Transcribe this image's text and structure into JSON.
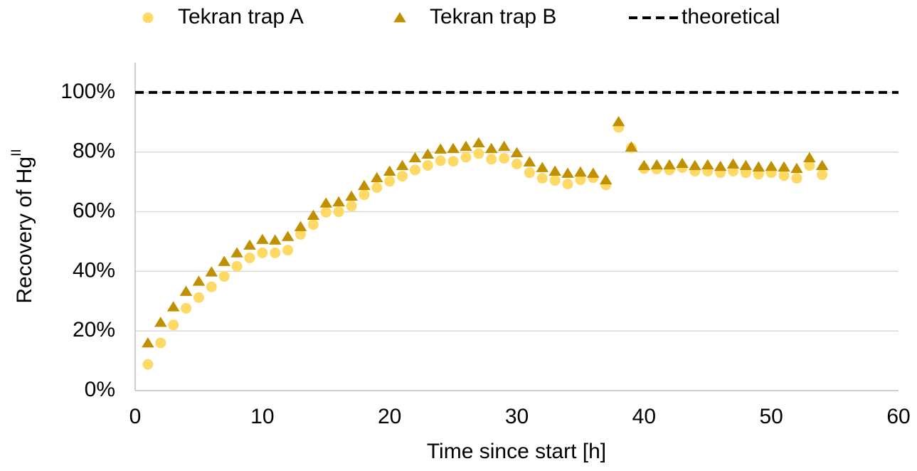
{
  "chart_data": {
    "type": "scatter",
    "x_label": "Time since start [h]",
    "y_label": "Recovery of Hg",
    "y_label_superscript": "II",
    "xlim": [
      0,
      60
    ],
    "xticks": [
      0,
      10,
      20,
      30,
      40,
      50,
      60
    ],
    "ylim": [
      0,
      110
    ],
    "yticks": [
      {
        "value": 0,
        "label": "0%"
      },
      {
        "value": 20,
        "label": "20%"
      },
      {
        "value": 40,
        "label": "40%"
      },
      {
        "value": 60,
        "label": "60%"
      },
      {
        "value": 80,
        "label": "80%"
      },
      {
        "value": 100,
        "label": "100%"
      }
    ],
    "grid": true,
    "legend": "top",
    "series": [
      {
        "name": "Tekran trap A",
        "color": "#ffd966",
        "marker": "circle",
        "x": [
          1,
          2,
          3,
          4,
          5,
          6,
          7,
          8,
          9,
          10,
          11,
          12,
          13,
          14,
          15,
          16,
          17,
          18,
          19,
          20,
          21,
          22,
          23,
          24,
          25,
          26,
          27,
          28,
          29,
          30,
          31,
          32,
          33,
          34,
          35,
          36,
          37,
          38,
          39,
          40,
          41,
          42,
          43,
          44,
          45,
          46,
          47,
          48,
          49,
          50,
          51,
          52,
          53,
          54
        ],
        "values": [
          8.8,
          16,
          22,
          27.6,
          31.2,
          34.8,
          38.3,
          41.7,
          44.5,
          46.2,
          46.2,
          47.1,
          52.4,
          55.7,
          59.8,
          60,
          61.9,
          65.7,
          68.1,
          70.2,
          71.9,
          74,
          75.5,
          77.1,
          76.9,
          78.3,
          79.5,
          77.6,
          77.9,
          76,
          73.1,
          71.2,
          70.5,
          69.3,
          70.7,
          71.4,
          69,
          88.3,
          81.4,
          74.5,
          74.3,
          74,
          74.8,
          73.6,
          73.6,
          73.1,
          73.6,
          73.1,
          72.6,
          73.1,
          72.1,
          71.2,
          75.5,
          72.4
        ]
      },
      {
        "name": "Tekran trap B",
        "color": "#bf9000",
        "marker": "triangle",
        "x": [
          1,
          2,
          3,
          4,
          5,
          6,
          7,
          8,
          9,
          10,
          11,
          12,
          13,
          14,
          15,
          16,
          17,
          18,
          19,
          20,
          21,
          22,
          23,
          24,
          25,
          26,
          27,
          28,
          29,
          30,
          31,
          32,
          33,
          34,
          35,
          36,
          37,
          38,
          39,
          40,
          41,
          42,
          43,
          44,
          45,
          46,
          47,
          48,
          49,
          50,
          51,
          52,
          53,
          54
        ],
        "values": [
          16,
          22.9,
          28.1,
          33.3,
          36.7,
          39.8,
          43.3,
          46.2,
          48.8,
          50.7,
          50.5,
          51.7,
          55,
          58.8,
          62.9,
          63.3,
          65.2,
          68.8,
          71.4,
          73.6,
          75.5,
          78.1,
          79.3,
          81,
          81.2,
          81.9,
          83.1,
          81.2,
          81.9,
          79.8,
          76.7,
          74.8,
          73.6,
          72.9,
          73.3,
          72.9,
          70.7,
          90.2,
          81.7,
          75.5,
          75.7,
          75.7,
          76.2,
          75.5,
          75.7,
          75.2,
          76,
          75.5,
          75,
          75.2,
          75,
          74.5,
          78.1,
          75.5
        ]
      },
      {
        "name": "theoretical",
        "color": "#000000",
        "marker": "dashed-line",
        "x": [
          0,
          60
        ],
        "values": [
          100,
          100
        ]
      }
    ]
  }
}
